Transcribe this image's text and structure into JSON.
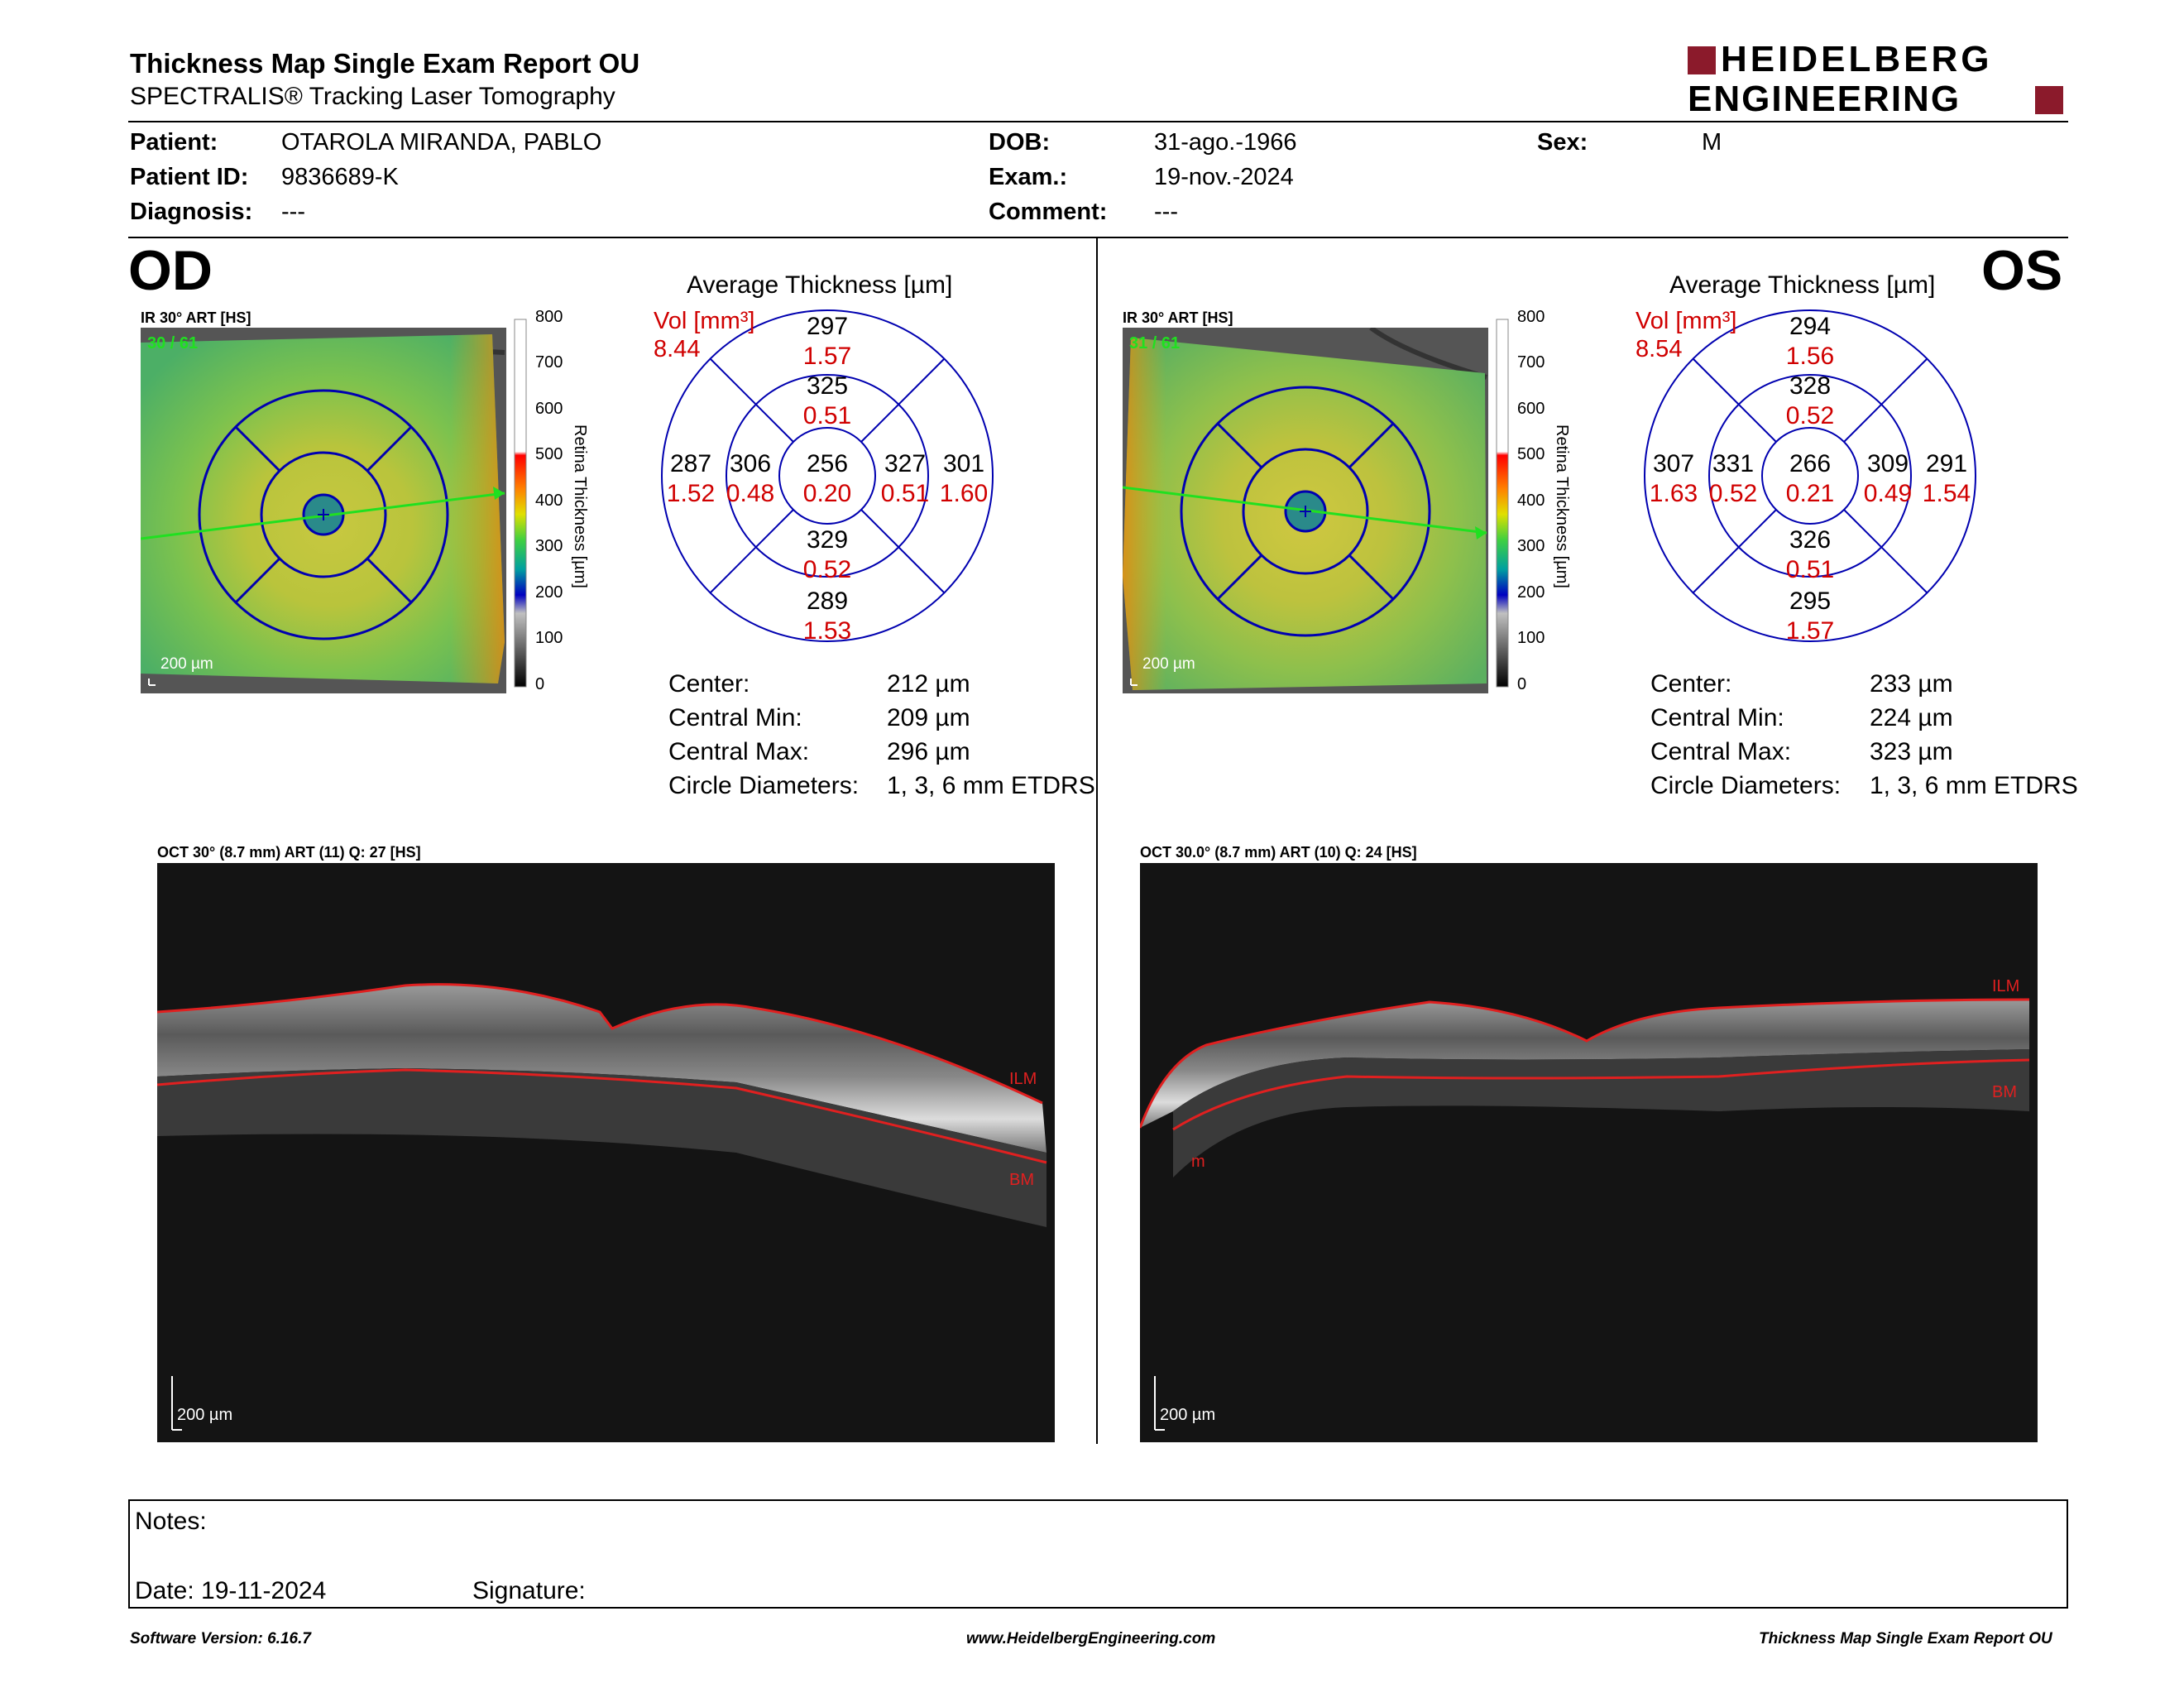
{
  "header": {
    "title": "Thickness Map Single Exam Report OU",
    "subtitle": "SPECTRALIS® Tracking Laser Tomography",
    "logo_line1": "HEIDELBERG",
    "logo_line2": "ENGINEERING",
    "brand_color": "#8b1a2b"
  },
  "patient": {
    "patient_label": "Patient:",
    "patient_value": "OTAROLA MIRANDA, PABLO",
    "id_label": "Patient ID:",
    "id_value": "9836689-K",
    "diagnosis_label": "Diagnosis:",
    "diagnosis_value": "---",
    "dob_label": "DOB:",
    "dob_value": "31-ago.-1966",
    "exam_label": "Exam.:",
    "exam_value": "19-nov.-2024",
    "comment_label": "Comment:",
    "comment_value": "---",
    "sex_label": "Sex:",
    "sex_value": "M"
  },
  "colorbar": {
    "ticks": [
      "800",
      "700",
      "600",
      "500",
      "400",
      "300",
      "200",
      "100",
      "0"
    ],
    "label": "Retina  Thickness [µm]"
  },
  "od": {
    "eye": "OD",
    "ir_caption": "IR 30° ART [HS]",
    "ir_count": "30 / 61",
    "ir_scale": "200 µm",
    "avg_title": "Average Thickness [µm]",
    "vol_label": "Vol [mm³]",
    "vol_total": "8.44",
    "grid": {
      "center": {
        "t": "256",
        "v": "0.20"
      },
      "inner_sup": {
        "t": "325",
        "v": "0.51"
      },
      "inner_inf": {
        "t": "329",
        "v": "0.52"
      },
      "inner_left": {
        "t": "306",
        "v": "0.48"
      },
      "inner_right": {
        "t": "327",
        "v": "0.51"
      },
      "outer_sup": {
        "t": "297",
        "v": "1.57"
      },
      "outer_inf": {
        "t": "289",
        "v": "1.53"
      },
      "outer_left": {
        "t": "287",
        "v": "1.52"
      },
      "outer_right": {
        "t": "301",
        "v": "1.60"
      }
    },
    "stats": {
      "center_label": "Center:",
      "center_value": "212 µm",
      "min_label": "Central Min:",
      "min_value": "209 µm",
      "max_label": "Central Max:",
      "max_value": "296 µm",
      "diam_label": "Circle Diameters:",
      "diam_value": "1, 3, 6 mm ETDRS"
    },
    "oct_caption": "OCT 30° (8.7 mm) ART (11) Q: 27 [HS]",
    "oct_scale": "200 µm",
    "ilm": "ILM",
    "bm": "BM"
  },
  "os": {
    "eye": "OS",
    "ir_caption": "IR 30° ART [HS]",
    "ir_count": "31 / 61",
    "ir_scale": "200 µm",
    "avg_title": "Average Thickness [µm]",
    "vol_label": "Vol [mm³]",
    "vol_total": "8.54",
    "grid": {
      "center": {
        "t": "266",
        "v": "0.21"
      },
      "inner_sup": {
        "t": "328",
        "v": "0.52"
      },
      "inner_inf": {
        "t": "326",
        "v": "0.51"
      },
      "inner_left": {
        "t": "331",
        "v": "0.52"
      },
      "inner_right": {
        "t": "309",
        "v": "0.49"
      },
      "outer_sup": {
        "t": "294",
        "v": "1.56"
      },
      "outer_inf": {
        "t": "295",
        "v": "1.57"
      },
      "outer_left": {
        "t": "307",
        "v": "1.63"
      },
      "outer_right": {
        "t": "291",
        "v": "1.54"
      }
    },
    "stats": {
      "center_label": "Center:",
      "center_value": "233 µm",
      "min_label": "Central Min:",
      "min_value": "224 µm",
      "max_label": "Central Max:",
      "max_value": "323 µm",
      "diam_label": "Circle Diameters:",
      "diam_value": "1, 3, 6 mm ETDRS"
    },
    "oct_caption": "OCT 30.0° (8.7 mm) ART (10) Q: 24 [HS]",
    "oct_scale": "200 µm",
    "ilm": "ILM",
    "bm": "BM",
    "extra_mark": "m"
  },
  "notes": {
    "notes_label": "Notes:",
    "date_label": "Date: 19-11-2024",
    "signature_label": "Signature:"
  },
  "footer": {
    "version": "Software Version: 6.16.7",
    "website": "www.HeidelbergEngineering.com",
    "report": "Thickness Map Single Exam Report OU"
  }
}
